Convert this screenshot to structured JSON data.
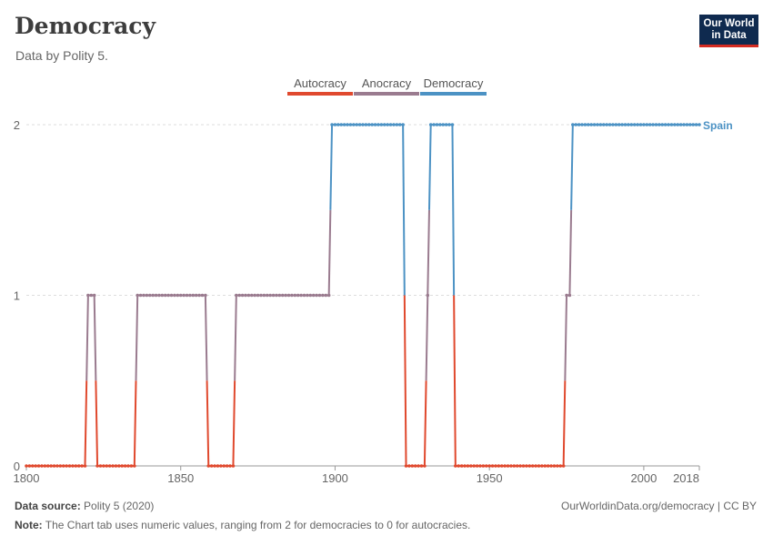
{
  "header": {
    "title": "Democracy",
    "subtitle": "Data by Polity 5.",
    "logo_line1": "Our World",
    "logo_line2": "in Data"
  },
  "legend": [
    {
      "label": "Autocracy",
      "color": "#e0492e"
    },
    {
      "label": "Anocracy",
      "color": "#9a7b8f"
    },
    {
      "label": "Democracy",
      "color": "#4c92c4"
    }
  ],
  "colors": {
    "autocracy": "#e0492e",
    "anocracy": "#9a7b8f",
    "democracy": "#4c92c4",
    "line_label": "#4c92c4"
  },
  "footer": {
    "source_label": "Data source:",
    "source_value": "Polity 5 (2020)",
    "url": "OurWorldinData.org/democracy | CC BY",
    "note_label": "Note:",
    "note_value": "The Chart tab uses numeric values, ranging from 2 for democracies to 0 for autocracies."
  },
  "chart_data": {
    "type": "line",
    "series": [
      {
        "name": "Spain",
        "segments": [
          {
            "start": 1800,
            "end": 1819,
            "value": 0
          },
          {
            "start": 1820,
            "end": 1822,
            "value": 1
          },
          {
            "start": 1823,
            "end": 1835,
            "value": 0
          },
          {
            "start": 1836,
            "end": 1858,
            "value": 1
          },
          {
            "start": 1859,
            "end": 1867,
            "value": 0
          },
          {
            "start": 1868,
            "end": 1898,
            "value": 1
          },
          {
            "start": 1899,
            "end": 1922,
            "value": 2
          },
          {
            "start": 1923,
            "end": 1929,
            "value": 0
          },
          {
            "start": 1930,
            "end": 1930,
            "value": 1
          },
          {
            "start": 1931,
            "end": 1938,
            "value": 2
          },
          {
            "start": 1939,
            "end": 1974,
            "value": 0
          },
          {
            "start": 1975,
            "end": 1976,
            "value": 1
          },
          {
            "start": 1977,
            "end": 2018,
            "value": 2
          }
        ]
      }
    ],
    "x_ticks": [
      1800,
      1850,
      1900,
      1950,
      2000,
      2018
    ],
    "y_ticks": [
      0,
      1,
      2
    ],
    "xlim": [
      1800,
      2018
    ],
    "ylim": [
      0,
      2
    ],
    "grid": true,
    "legend_position": "top-center"
  }
}
